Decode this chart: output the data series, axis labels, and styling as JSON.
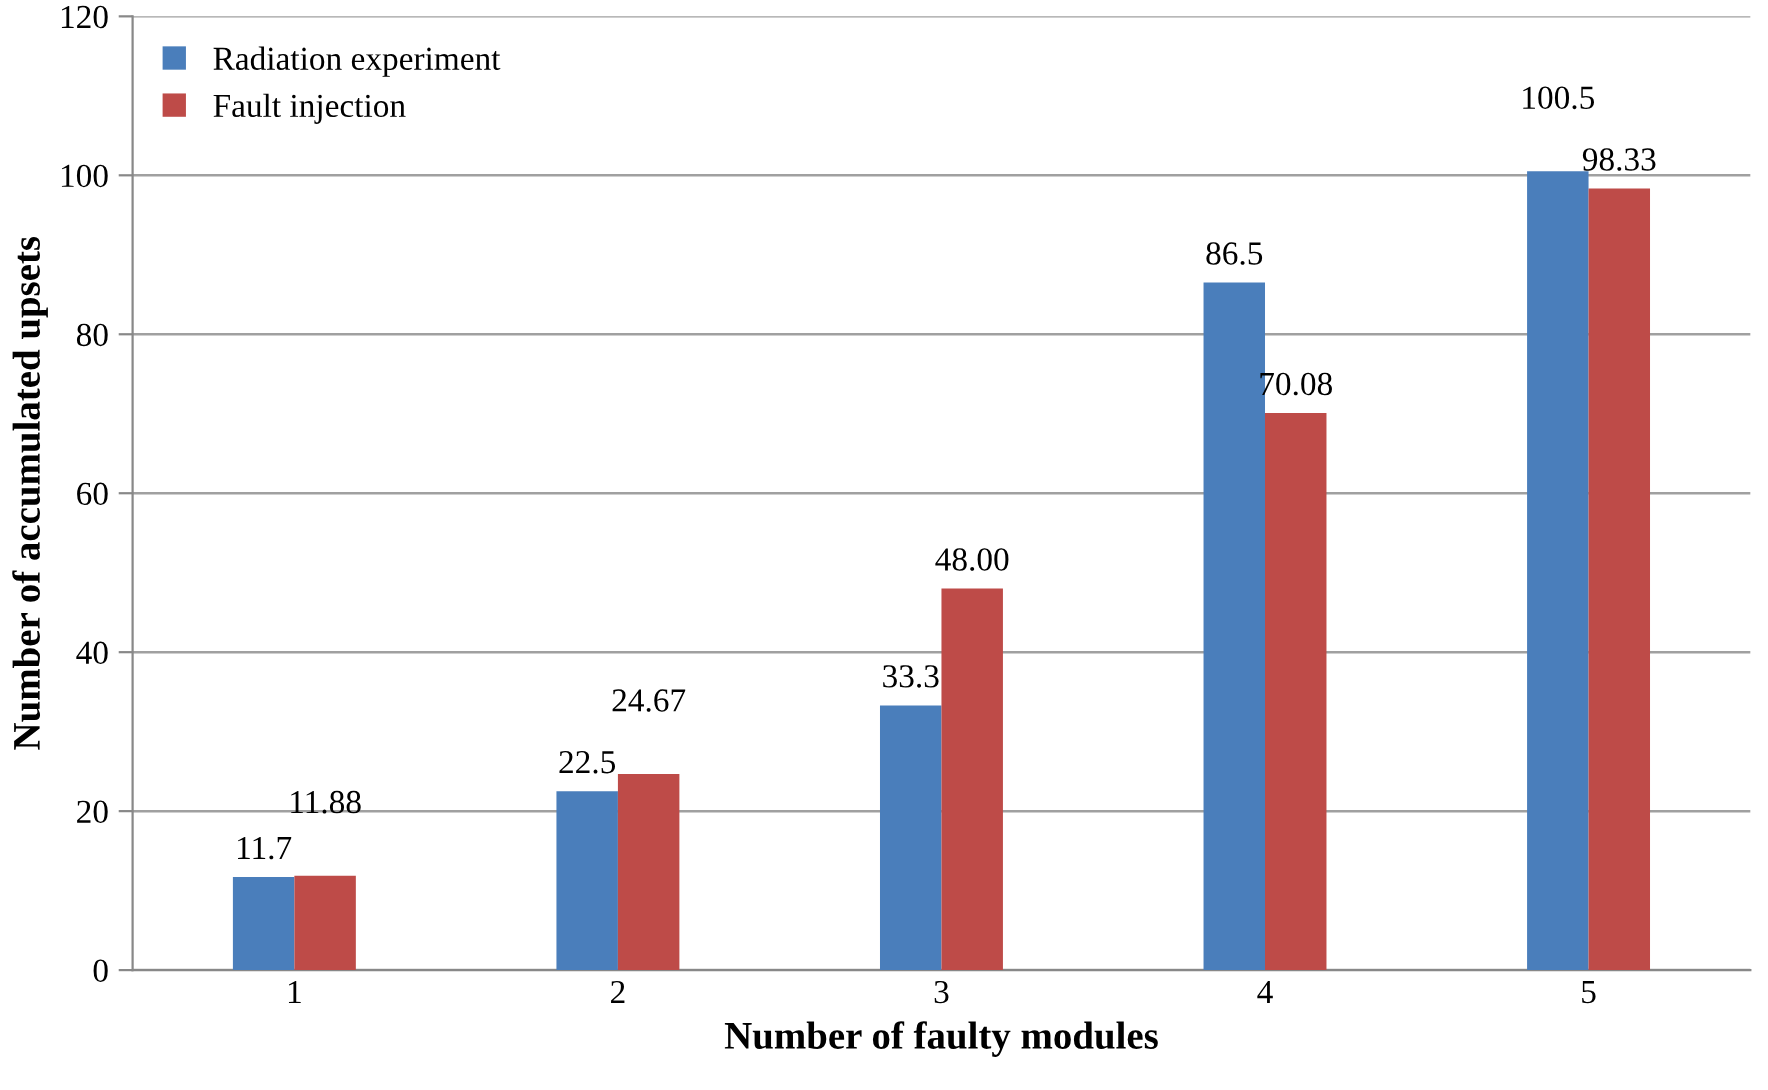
{
  "chart_data": {
    "type": "bar",
    "xlabel": "Number of faulty modules",
    "ylabel": "Number of accumulated upsets",
    "categories": [
      "1",
      "2",
      "3",
      "4",
      "5"
    ],
    "series": [
      {
        "name": "Radiation experiment",
        "color": "#4a7ebb",
        "values": [
          11.7,
          22.5,
          33.3,
          86.5,
          100.5
        ],
        "value_labels": [
          "11.7",
          "22.5",
          "33.3",
          "86.5",
          "100.5"
        ]
      },
      {
        "name": "Fault injection",
        "color": "#be4b48",
        "values": [
          11.88,
          24.67,
          48.0,
          70.08,
          98.33
        ],
        "value_labels": [
          "11.88",
          "24.67",
          "48.00",
          "70.08",
          "98.33"
        ]
      }
    ],
    "ylim": [
      0,
      120
    ],
    "yticks": [
      0,
      20,
      40,
      60,
      80,
      100,
      120
    ],
    "grid": "y",
    "legend": "top left"
  }
}
